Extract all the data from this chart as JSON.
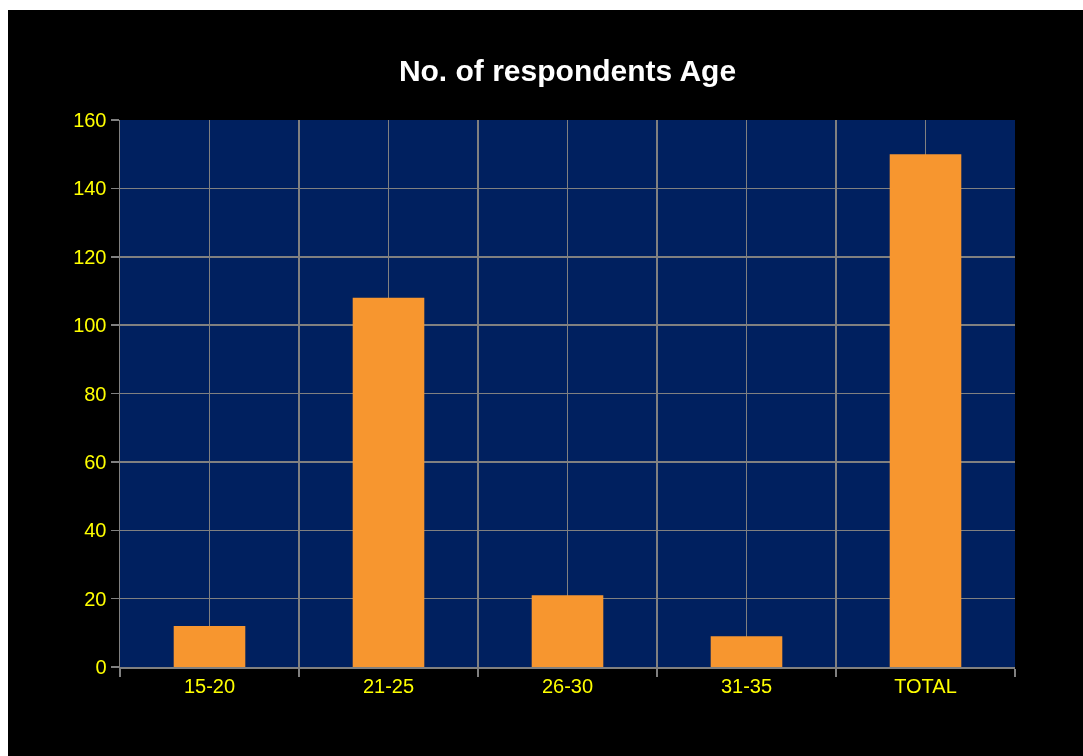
{
  "chart_data": {
    "type": "bar",
    "title": "No. of respondents Age",
    "categories": [
      "15-20",
      "21-25",
      "26-30",
      "31-35",
      "TOTAL"
    ],
    "values": [
      12,
      108,
      21,
      9,
      150
    ],
    "color": "#f7962f",
    "ylim": [
      0,
      160
    ],
    "yticks": [
      0,
      20,
      40,
      60,
      80,
      100,
      120,
      140,
      160
    ],
    "grid": true
  }
}
